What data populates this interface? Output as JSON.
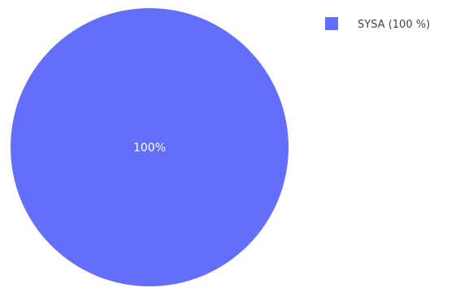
{
  "chart_data": {
    "type": "pie",
    "labels": [
      "SYSA"
    ],
    "values": [
      100
    ],
    "percent_labels": [
      "100%"
    ],
    "legend": {
      "position": "top-right",
      "entries": [
        "SYSA (100 %)"
      ]
    },
    "colors": [
      "#636efa"
    ]
  }
}
